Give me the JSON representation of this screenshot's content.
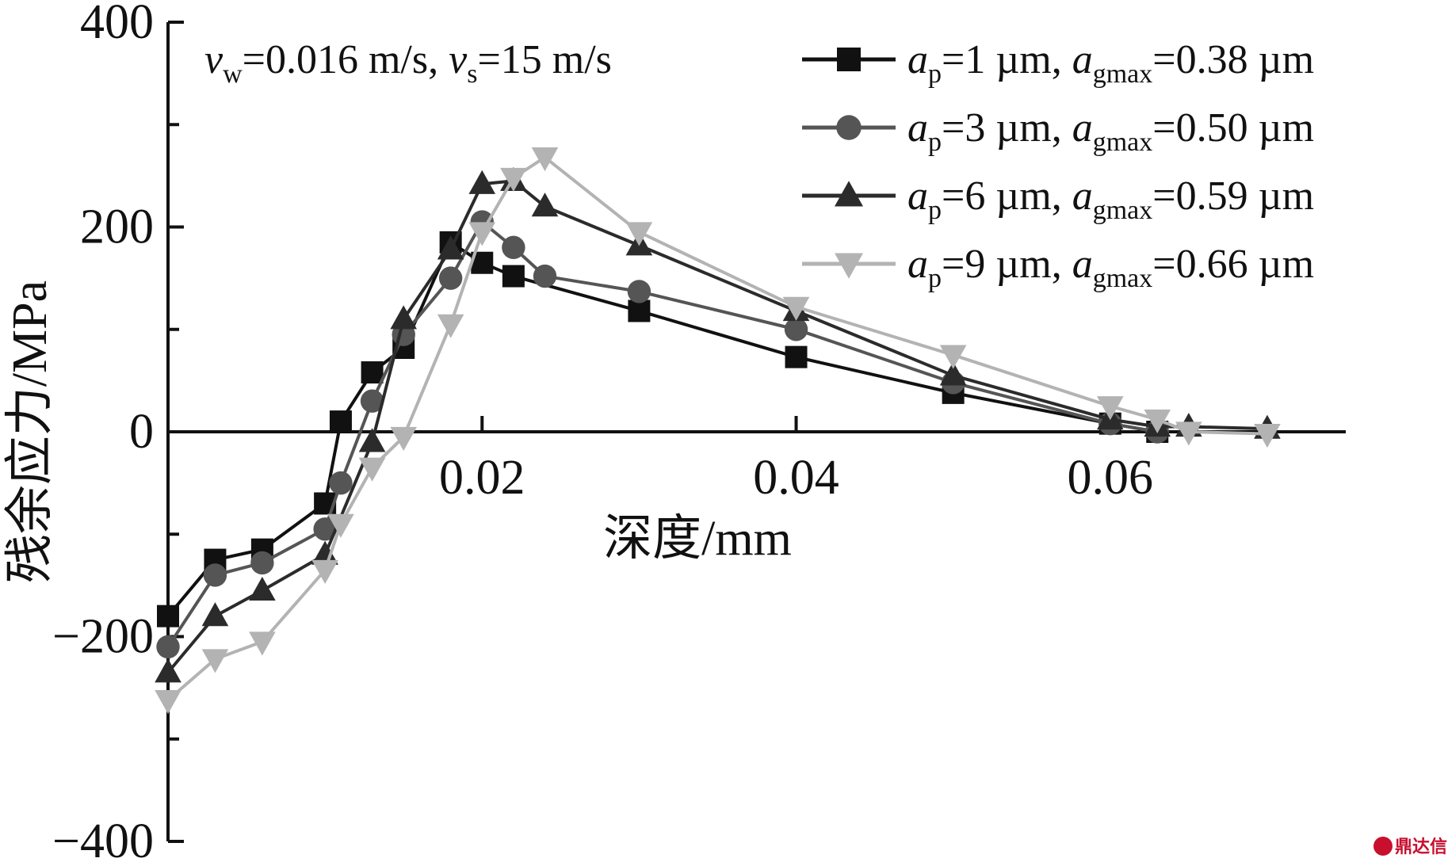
{
  "chart_data": {
    "type": "line",
    "xlabel": "深度/mm",
    "ylabel": "残余应力/MPa",
    "xlim": [
      0,
      0.075
    ],
    "ylim": [
      -400,
      400
    ],
    "xticks": [
      0.02,
      0.04,
      0.06
    ],
    "xtick_labels": [
      "0.02",
      "0.04",
      "0.06"
    ],
    "yticks": [
      -400,
      -200,
      0,
      200,
      400
    ],
    "ytick_labels": [
      "−400",
      "−200",
      "0",
      "200",
      "400"
    ],
    "annotation": {
      "v1": "v",
      "v1_sub": "w",
      "v1_rest": "=0.016 m/s, ",
      "v2": "v",
      "v2_sub": "s",
      "v2_rest": "=15 m/s"
    },
    "legend_position": "top-right",
    "series": [
      {
        "name": "a_p=1 µm, a_gmax=0.38 µm",
        "label_a": "a",
        "label_p": "p",
        "label_mid": "=1 µm, ",
        "label_a2": "a",
        "label_g": "gmax",
        "label_end": "=0.38 µm",
        "color": "#111111",
        "marker": "square",
        "x": [
          0.0,
          0.003,
          0.006,
          0.01,
          0.011,
          0.013,
          0.015,
          0.018,
          0.02,
          0.022,
          0.03,
          0.04,
          0.05,
          0.06,
          0.063
        ],
        "y": [
          -180,
          -125,
          -115,
          -70,
          10,
          58,
          82,
          185,
          165,
          152,
          118,
          73,
          38,
          8,
          0
        ]
      },
      {
        "name": "a_p=3 µm, a_gmax=0.50 µm",
        "label_a": "a",
        "label_p": "p",
        "label_mid": "=3 µm, ",
        "label_a2": "a",
        "label_g": "gmax",
        "label_end": "=0.50 µm",
        "color": "#555555",
        "marker": "circle",
        "x": [
          0.0,
          0.003,
          0.006,
          0.01,
          0.011,
          0.013,
          0.015,
          0.018,
          0.02,
          0.022,
          0.024,
          0.03,
          0.04,
          0.05,
          0.06,
          0.063
        ],
        "y": [
          -210,
          -140,
          -128,
          -95,
          -50,
          30,
          95,
          150,
          205,
          180,
          152,
          137,
          100,
          48,
          8,
          0
        ]
      },
      {
        "name": "a_p=6 µm, a_gmax=0.59 µm",
        "label_a": "a",
        "label_p": "p",
        "label_mid": "=6 µm, ",
        "label_a2": "a",
        "label_g": "gmax",
        "label_end": "=0.59 µm",
        "color": "#2b2b2b",
        "marker": "triangle-up",
        "x": [
          0.0,
          0.003,
          0.006,
          0.01,
          0.013,
          0.015,
          0.018,
          0.02,
          0.022,
          0.024,
          0.03,
          0.04,
          0.05,
          0.06,
          0.063,
          0.065,
          0.07
        ],
        "y": [
          -235,
          -180,
          -155,
          -120,
          -10,
          110,
          178,
          242,
          245,
          220,
          182,
          118,
          55,
          12,
          5,
          5,
          3
        ]
      },
      {
        "name": "a_p=9 µm, a_gmax=0.66 µm",
        "label_a": "a",
        "label_p": "p",
        "label_mid": "=9 µm, ",
        "label_a2": "a",
        "label_g": "gmax",
        "label_end": "=0.66 µm",
        "color": "#b3b3b3",
        "marker": "triangle-down",
        "x": [
          0.0,
          0.003,
          0.006,
          0.01,
          0.011,
          0.013,
          0.015,
          0.018,
          0.02,
          0.022,
          0.024,
          0.03,
          0.04,
          0.05,
          0.06,
          0.063,
          0.065,
          0.07
        ],
        "y": [
          -262,
          -222,
          -205,
          -135,
          -90,
          -35,
          -5,
          105,
          195,
          248,
          268,
          195,
          122,
          75,
          25,
          12,
          0,
          -2
        ]
      }
    ]
  },
  "watermark": {
    "text": "鼎达信",
    "color": "#c8102e"
  }
}
